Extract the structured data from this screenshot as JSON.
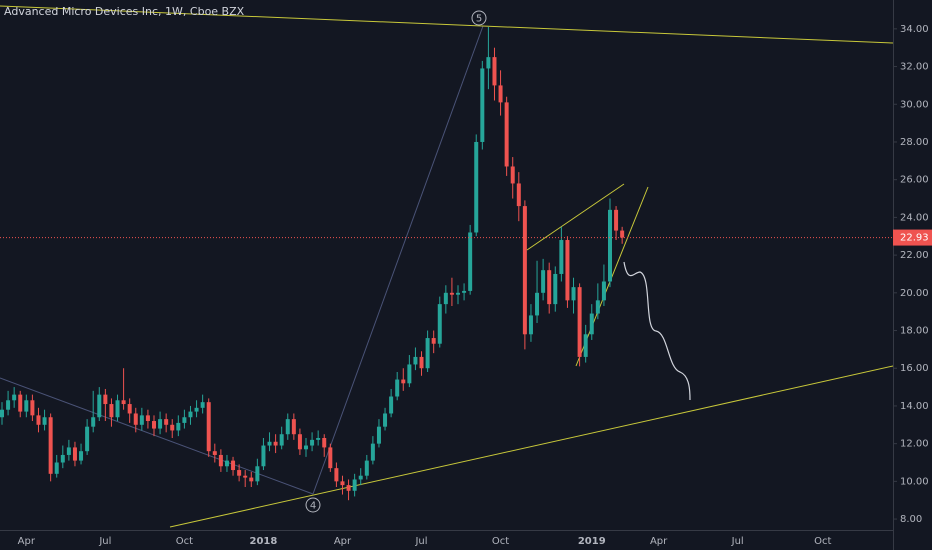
{
  "chart_data": {
    "type": "candlestick",
    "title": "Advanced Micro Devices Inc, 1W, Cboe BZX",
    "annotations": [
      "5",
      "4"
    ],
    "last_price": 22.93,
    "up_color": "#26a69a",
    "down_color": "#ef5350",
    "ylim": [
      7.42,
      35.53
    ],
    "yticks": [
      {
        "value": 8,
        "label": "8.00"
      },
      {
        "value": 10,
        "label": "10.00"
      },
      {
        "value": 12,
        "label": "12.00"
      },
      {
        "value": 14,
        "label": "14.00"
      },
      {
        "value": 16,
        "label": "16.00"
      },
      {
        "value": 18,
        "label": "18.00"
      },
      {
        "value": 20,
        "label": "20.00"
      },
      {
        "value": 22,
        "label": "22.00"
      },
      {
        "value": 24,
        "label": "24.00"
      },
      {
        "value": 26,
        "label": "26.00"
      },
      {
        "value": 28,
        "label": "28.00"
      },
      {
        "value": 30,
        "label": "30.00"
      },
      {
        "value": 32,
        "label": "32.00"
      },
      {
        "value": 34,
        "label": "34.00"
      }
    ],
    "categories": [
      null,
      null,
      null,
      null,
      "Apr",
      null,
      null,
      null,
      null,
      null,
      null,
      null,
      null,
      null,
      null,
      null,
      null,
      "Jul",
      null,
      null,
      null,
      null,
      null,
      null,
      null,
      null,
      null,
      null,
      null,
      null,
      "Oct",
      null,
      null,
      null,
      null,
      null,
      null,
      null,
      null,
      null,
      null,
      null,
      null,
      "2018",
      null,
      null,
      null,
      null,
      null,
      null,
      null,
      null,
      null,
      null,
      null,
      null,
      "Apr",
      null,
      null,
      null,
      null,
      null,
      null,
      null,
      null,
      null,
      null,
      null,
      null,
      "Jul",
      null,
      null,
      null,
      null,
      null,
      null,
      null,
      null,
      null,
      null,
      null,
      null,
      "Oct",
      null,
      null,
      null,
      null,
      null,
      null,
      null,
      null,
      null,
      null,
      null,
      null,
      null,
      null,
      "2019",
      null,
      null,
      null,
      null,
      null,
      null,
      null,
      null,
      null,
      null,
      "Apr",
      null,
      null,
      null,
      null,
      null,
      null,
      null,
      null,
      null,
      null,
      null,
      null,
      "Jul",
      null,
      null,
      null,
      null,
      null,
      null,
      null,
      null,
      null,
      null,
      null,
      null,
      null,
      "Oct",
      null,
      null,
      null,
      null,
      null,
      null,
      null,
      null,
      null,
      null,
      null
    ],
    "open": [
      13.4,
      13.8,
      14.3,
      14.6,
      13.7,
      14.3,
      13.5,
      13.0,
      13.4,
      10.4,
      11.0,
      11.4,
      11.8,
      11.1,
      11.6,
      12.9,
      13.4,
      14.6,
      14.1,
      13.4,
      14.3,
      14.1,
      13.6,
      13.0,
      13.5,
      13.2,
      12.8,
      13.3,
      13.0,
      12.7,
      13.1,
      13.4,
      13.7,
      13.9,
      14.2,
      11.6,
      11.4,
      10.8,
      11.1,
      10.6,
      10.3,
      10.2,
      10.0,
      10.8,
      11.9,
      12.1,
      11.9,
      12.5,
      13.3,
      12.5,
      11.7,
      11.9,
      12.2,
      12.3,
      11.8,
      10.7,
      10.0,
      9.8,
      9.5,
      10.1,
      10.3,
      11.1,
      12.0,
      12.9,
      13.6,
      14.5,
      15.4,
      15.2,
      16.2,
      16.6,
      16.0,
      17.6,
      17.3,
      19.4,
      20.0,
      19.9,
      20.0,
      20.1,
      23.2,
      28.0,
      31.9,
      32.5,
      31.0,
      30.1,
      26.7,
      25.8,
      24.6,
      17.8,
      18.8,
      20.0,
      21.2,
      19.4,
      21.0,
      22.8,
      19.6,
      20.3,
      16.6,
      17.8,
      18.9,
      19.6,
      20.6,
      24.4,
      23.3,
      null,
      null,
      null,
      null,
      null,
      null,
      null,
      null,
      null,
      null,
      null,
      null,
      null,
      null,
      null,
      null,
      null,
      null,
      null,
      null,
      null,
      null,
      null,
      null,
      null,
      null,
      null,
      null,
      null,
      null,
      null,
      null,
      null,
      null,
      null,
      null,
      null,
      null,
      null,
      null,
      null,
      null,
      null,
      null
    ],
    "high": [
      14.2,
      14.8,
      15.0,
      14.8,
      14.6,
      14.6,
      13.9,
      13.8,
      13.6,
      11.4,
      11.9,
      12.2,
      12.1,
      12.0,
      13.3,
      14.8,
      15.0,
      14.9,
      14.4,
      14.6,
      16.0,
      14.4,
      13.9,
      13.9,
      13.8,
      13.5,
      13.7,
      13.6,
      13.3,
      13.5,
      13.8,
      14.0,
      14.3,
      14.6,
      14.4,
      12.0,
      11.7,
      11.4,
      11.3,
      10.9,
      10.6,
      10.5,
      11.2,
      12.3,
      12.6,
      12.5,
      12.9,
      13.6,
      13.6,
      12.8,
      12.3,
      12.6,
      12.7,
      12.5,
      12.0,
      11.0,
      10.3,
      10.1,
      10.4,
      10.7,
      11.4,
      12.4,
      13.3,
      13.9,
      14.9,
      15.8,
      16.0,
      16.7,
      17.1,
      16.9,
      18.0,
      18.0,
      19.8,
      20.4,
      20.8,
      20.4,
      20.5,
      23.6,
      28.4,
      32.3,
      34.1,
      33.0,
      31.8,
      30.4,
      27.2,
      26.4,
      24.9,
      19.4,
      21.7,
      21.8,
      21.6,
      21.4,
      23.5,
      23.0,
      20.8,
      20.5,
      18.3,
      19.4,
      20.5,
      21.5,
      25.0,
      24.6,
      23.5,
      null,
      null,
      null,
      null,
      null,
      null,
      null,
      null,
      null,
      null,
      null,
      null,
      null,
      null,
      null,
      null,
      null,
      null,
      null,
      null,
      null,
      null,
      null,
      null,
      null,
      null,
      null,
      null,
      null,
      null,
      null,
      null,
      null,
      null,
      null,
      null,
      null,
      null,
      null,
      null,
      null,
      null,
      null,
      null
    ],
    "low": [
      13.0,
      13.5,
      13.9,
      13.4,
      13.4,
      13.2,
      12.6,
      12.7,
      10.0,
      10.2,
      10.7,
      11.1,
      10.8,
      10.9,
      11.4,
      12.6,
      13.2,
      13.2,
      12.9,
      13.2,
      13.8,
      13.1,
      12.6,
      12.7,
      12.8,
      12.4,
      12.5,
      12.6,
      12.3,
      12.4,
      12.8,
      13.0,
      13.4,
      13.6,
      11.3,
      11.0,
      10.5,
      10.5,
      10.3,
      10.0,
      9.7,
      9.7,
      9.8,
      10.6,
      11.6,
      11.5,
      11.7,
      12.2,
      12.2,
      11.4,
      11.3,
      11.6,
      11.9,
      11.3,
      10.5,
      9.7,
      9.3,
      9.0,
      9.2,
      9.8,
      10.1,
      10.9,
      11.8,
      12.7,
      13.4,
      14.3,
      14.8,
      15.0,
      15.9,
      15.6,
      15.8,
      16.8,
      17.1,
      18.9,
      19.3,
      19.4,
      19.6,
      19.9,
      23.0,
      27.6,
      30.8,
      30.2,
      29.4,
      26.2,
      25.0,
      23.8,
      17.0,
      17.4,
      18.4,
      19.6,
      18.9,
      19.0,
      20.6,
      19.2,
      18.9,
      16.1,
      16.3,
      17.5,
      18.6,
      19.3,
      20.3,
      22.8,
      22.6,
      null,
      null,
      null,
      null,
      null,
      null,
      null,
      null,
      null,
      null,
      null,
      null,
      null,
      null,
      null,
      null,
      null,
      null,
      null,
      null,
      null,
      null,
      null,
      null,
      null,
      null,
      null,
      null,
      null,
      null,
      null,
      null,
      null,
      null,
      null,
      null,
      null,
      null,
      null,
      null,
      null,
      null,
      null,
      null
    ],
    "close": [
      13.8,
      14.3,
      14.6,
      13.7,
      14.3,
      13.5,
      13.0,
      13.4,
      10.4,
      11.0,
      11.4,
      11.8,
      11.1,
      11.6,
      12.9,
      13.4,
      14.6,
      14.1,
      13.4,
      14.3,
      14.1,
      13.6,
      13.0,
      13.5,
      13.2,
      12.8,
      13.3,
      13.0,
      12.7,
      13.1,
      13.4,
      13.7,
      13.9,
      14.2,
      11.6,
      11.4,
      10.8,
      11.1,
      10.6,
      10.3,
      10.2,
      10.0,
      10.8,
      11.9,
      12.1,
      11.9,
      12.5,
      13.3,
      12.5,
      11.7,
      11.9,
      12.2,
      12.3,
      11.8,
      10.7,
      10.0,
      9.8,
      9.5,
      10.1,
      10.3,
      11.1,
      12.0,
      12.9,
      13.6,
      14.5,
      15.4,
      15.2,
      16.2,
      16.6,
      16.0,
      17.6,
      17.3,
      19.4,
      20.0,
      19.9,
      20.0,
      20.1,
      23.2,
      28.0,
      31.9,
      32.5,
      31.0,
      30.1,
      26.7,
      25.8,
      24.6,
      17.8,
      18.8,
      20.0,
      21.2,
      19.4,
      21.0,
      22.8,
      19.6,
      20.3,
      16.6,
      17.8,
      18.9,
      19.6,
      20.6,
      24.4,
      23.3,
      22.93,
      null,
      null,
      null,
      null,
      null,
      null,
      null,
      null,
      null,
      null,
      null,
      null,
      null,
      null,
      null,
      null,
      null,
      null,
      null,
      null,
      null,
      null,
      null,
      null,
      null,
      null,
      null,
      null,
      null,
      null,
      null,
      null,
      null,
      null,
      null,
      null,
      null,
      null,
      null,
      null,
      null,
      null,
      null,
      null
    ]
  }
}
